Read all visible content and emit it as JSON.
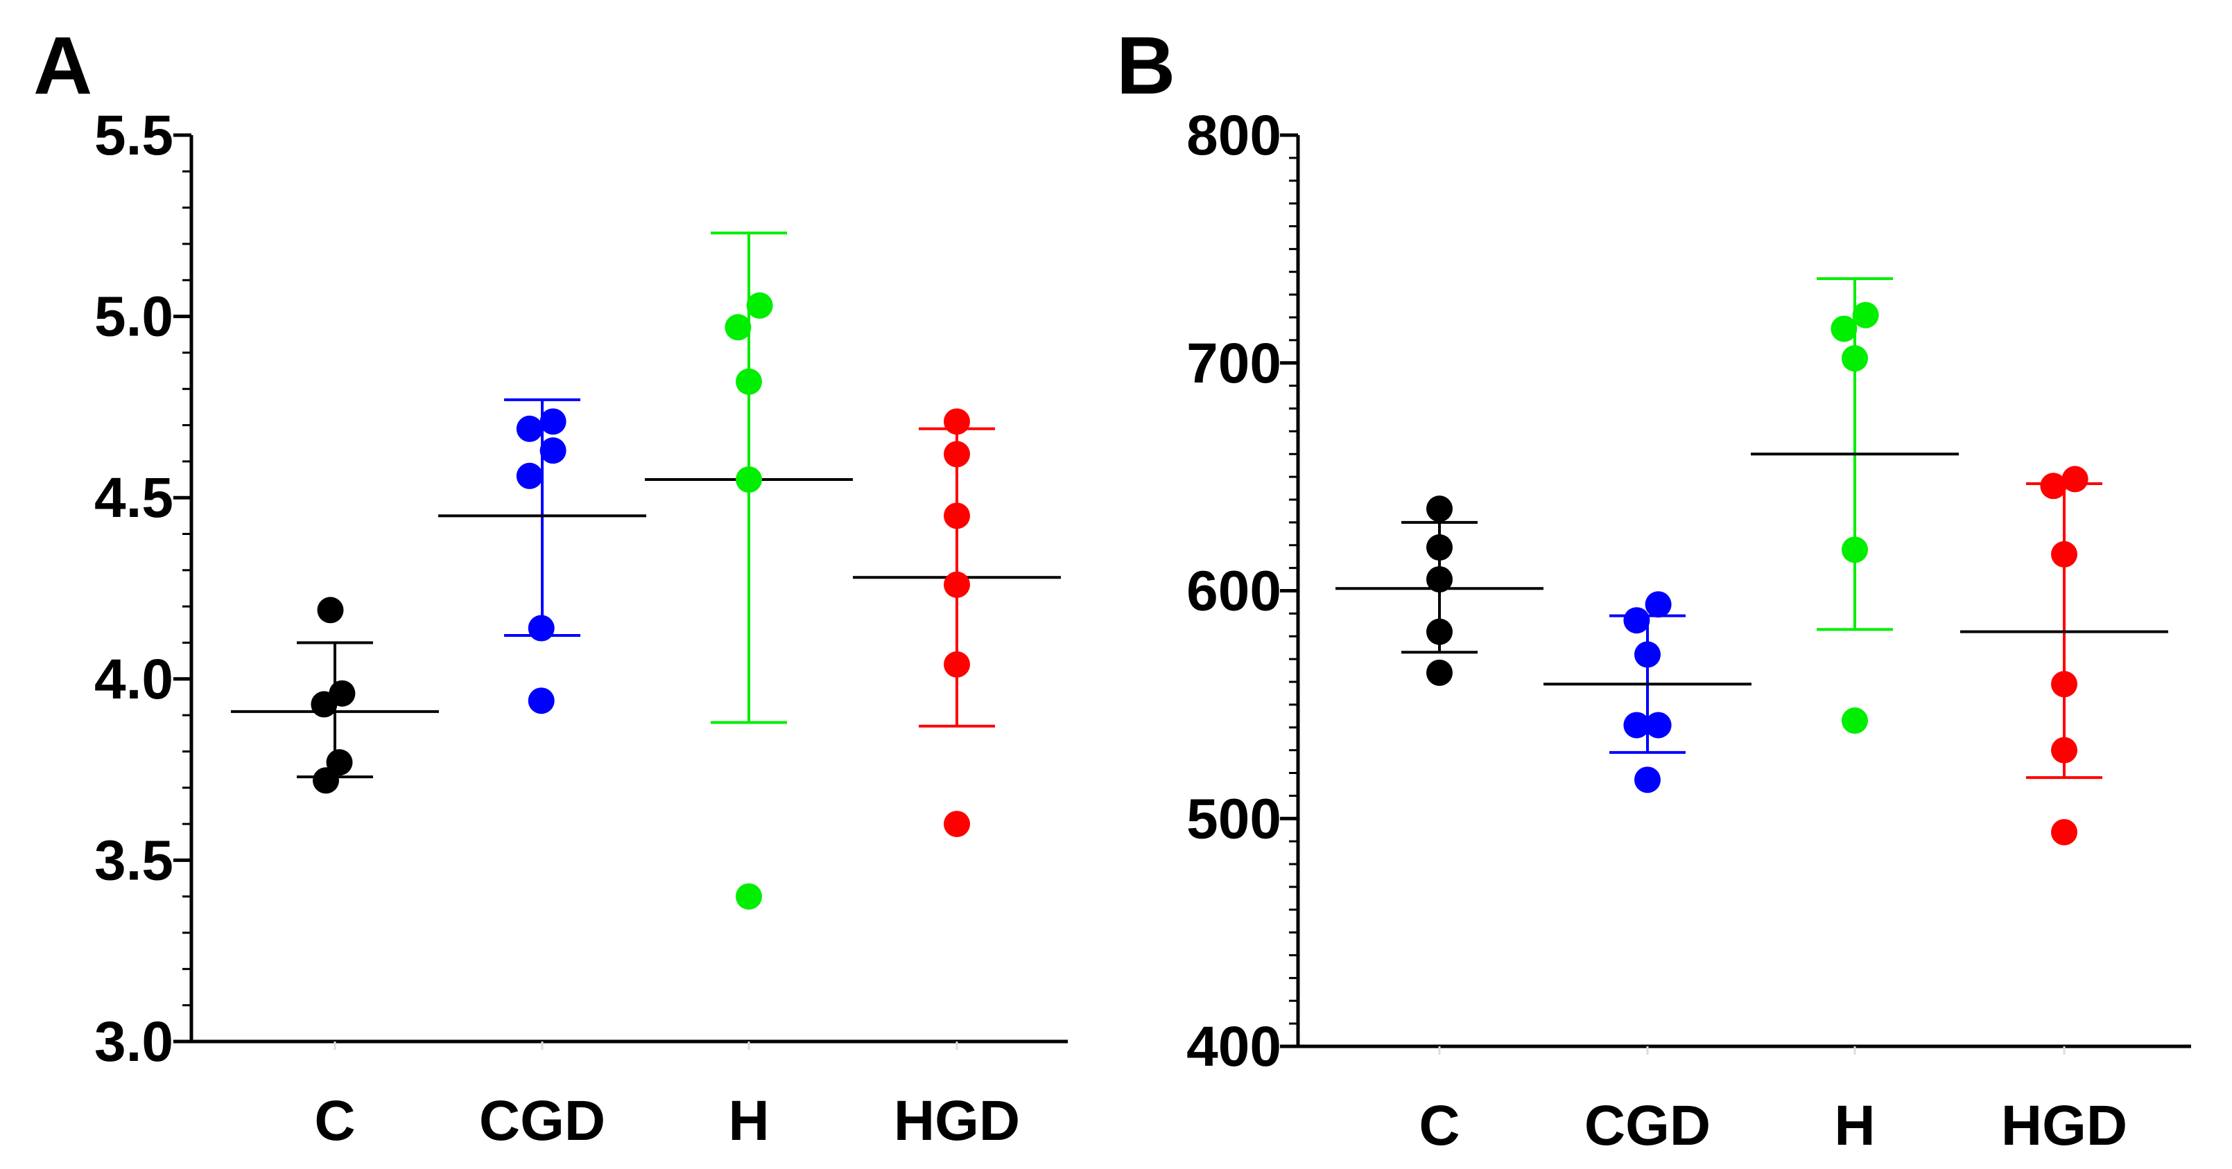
{
  "chart_data": [
    {
      "panel": "A",
      "type": "scatter",
      "title": "",
      "xlabel": "",
      "ylabel": "",
      "ylim": [
        3.0,
        5.5
      ],
      "yticks": [
        "3.0",
        "3.5",
        "4.0",
        "4.5",
        "5.0",
        "5.5"
      ],
      "ytick_values": [
        3.0,
        3.5,
        4.0,
        4.5,
        5.0,
        5.5
      ],
      "categories": [
        "C",
        "CGD",
        "H",
        "HGD"
      ],
      "series": [
        {
          "name": "C",
          "color": "#000000",
          "points": [
            [
              -0.05,
              4.19
            ],
            [
              -0.12,
              3.93
            ],
            [
              0.08,
              3.96
            ],
            [
              0.05,
              3.77
            ],
            [
              -0.1,
              3.72
            ]
          ],
          "mean": 3.91,
          "sd_low": 3.73,
          "sd_high": 4.1
        },
        {
          "name": "CGD",
          "color": "#0000ff",
          "points": [
            [
              -0.14,
              4.69
            ],
            [
              0.12,
              4.71
            ],
            [
              -0.14,
              4.56
            ],
            [
              0.12,
              4.63
            ],
            [
              -0.01,
              4.14
            ],
            [
              -0.01,
              3.94
            ]
          ],
          "mean": 4.45,
          "sd_low": 4.12,
          "sd_high": 4.77
        },
        {
          "name": "H",
          "color": "#00ee00",
          "points": [
            [
              -0.12,
              4.97
            ],
            [
              0.12,
              5.03
            ],
            [
              0.0,
              4.82
            ],
            [
              0.0,
              4.55
            ],
            [
              0.0,
              3.4
            ]
          ],
          "mean": 4.55,
          "sd_low": 3.88,
          "sd_high": 5.23
        },
        {
          "name": "HGD",
          "color": "#ff0000",
          "points": [
            [
              0.0,
              4.71
            ],
            [
              0.0,
              4.62
            ],
            [
              0.0,
              4.45
            ],
            [
              0.0,
              4.26
            ],
            [
              0.0,
              4.04
            ],
            [
              0.0,
              3.6
            ]
          ],
          "mean": 4.28,
          "sd_low": 3.87,
          "sd_high": 4.69
        }
      ]
    },
    {
      "panel": "B",
      "type": "scatter",
      "title": "",
      "xlabel": "",
      "ylabel": "",
      "ylim": [
        400,
        800
      ],
      "yticks": [
        "400",
        "500",
        "600",
        "700",
        "800"
      ],
      "ytick_values": [
        400,
        500,
        600,
        700,
        800
      ],
      "categories": [
        "C",
        "CGD",
        "H",
        "HGD"
      ],
      "series": [
        {
          "name": "C",
          "color": "#000000",
          "points": [
            [
              0.0,
              636
            ],
            [
              0.0,
              619
            ],
            [
              0.0,
              605
            ],
            [
              0.0,
              582
            ],
            [
              0.0,
              564
            ]
          ],
          "mean": 601,
          "sd_low": 573,
          "sd_high": 630
        },
        {
          "name": "CGD",
          "color": "#0000ff",
          "points": [
            [
              -0.12,
              587
            ],
            [
              0.12,
              594
            ],
            [
              0.0,
              572
            ],
            [
              -0.12,
              541
            ],
            [
              0.12,
              541
            ],
            [
              0.0,
              517
            ]
          ],
          "mean": 559,
          "sd_low": 529,
          "sd_high": 589
        },
        {
          "name": "H",
          "color": "#00ee00",
          "points": [
            [
              -0.12,
              715
            ],
            [
              0.12,
              721
            ],
            [
              0.0,
              702
            ],
            [
              0.0,
              618
            ],
            [
              0.0,
              543
            ]
          ],
          "mean": 660,
          "sd_low": 583,
          "sd_high": 737
        },
        {
          "name": "HGD",
          "color": "#ff0000",
          "points": [
            [
              -0.12,
              646
            ],
            [
              0.12,
              649
            ],
            [
              0.0,
              616
            ],
            [
              0.0,
              559
            ],
            [
              0.0,
              530
            ],
            [
              0.0,
              494
            ]
          ],
          "mean": 582,
          "sd_low": 518,
          "sd_high": 647
        }
      ]
    }
  ]
}
